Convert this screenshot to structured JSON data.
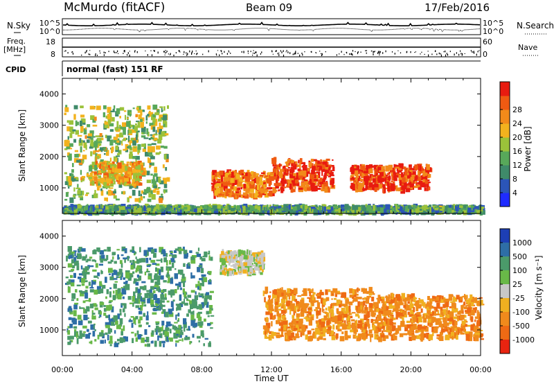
{
  "header": {
    "station": "McMurdo (fitACF)",
    "beam": "Beam 09",
    "date": "17/Feb/2016"
  },
  "noise_panel": {
    "left_label": "N.Sky",
    "right_label": "N.Search",
    "left_ticks": [
      "10^5",
      "10^0"
    ],
    "right_ticks": [
      "10^5",
      "10^0"
    ]
  },
  "freq_panel": {
    "left_label_1": "Freq.",
    "left_label_2": "[MHz]",
    "right_label": "Nave",
    "left_ticks": [
      "18",
      "8"
    ],
    "right_ticks": [
      "60",
      "0"
    ]
  },
  "cpid_panel": {
    "label": "CPID",
    "value": "normal (fast) 151 RF"
  },
  "x_axis": {
    "label": "Time UT",
    "ticks": [
      "00:00",
      "04:00",
      "08:00",
      "12:00",
      "16:00",
      "20:00",
      "00:00"
    ]
  },
  "power_panel": {
    "ylabel": "Slant Range [km]",
    "yticks": [
      "1000",
      "2000",
      "3000",
      "4000"
    ]
  },
  "velocity_panel": {
    "ylabel": "Slant Range [km]",
    "yticks": [
      "1000",
      "2000",
      "3000",
      "4000"
    ]
  },
  "power_colorbar": {
    "label": "Power [dB]",
    "ticks": [
      "4",
      "8",
      "12",
      "16",
      "20",
      "24",
      "28"
    ],
    "colors": [
      "#1f2bff",
      "#2b55b8",
      "#3f8a6a",
      "#58a85a",
      "#9bc23a",
      "#f2b21e",
      "#f28a1a",
      "#ef5a12",
      "#e81b10"
    ]
  },
  "velocity_colorbar": {
    "label": "Velocity [m s⁻¹]",
    "ticks": [
      "1000",
      "500",
      "100",
      "25",
      "-25",
      "-100",
      "-500",
      "-1000"
    ],
    "colors": [
      "#1d3fb5",
      "#2e6ea6",
      "#4b9a6a",
      "#69b848",
      "#c8c8c8",
      "#f0b020",
      "#f08a1c",
      "#ef6a14",
      "#e82410"
    ]
  },
  "chart_data": [
    {
      "type": "heatmap",
      "title": "Power",
      "xlabel": "Time UT",
      "ylabel": "Slant Range [km]",
      "xlim": [
        "00:00",
        "24:00"
      ],
      "ylim": [
        180,
        4500
      ],
      "colorbar_range": [
        0,
        30
      ],
      "colorbar_units": "dB",
      "echo_regions": [
        {
          "t_start": 0.1,
          "t_end": 6.0,
          "range_low": 600,
          "range_high": 3600,
          "power_db": 14
        },
        {
          "t_start": 1.5,
          "t_end": 4.5,
          "range_low": 1100,
          "range_high": 1800,
          "power_db": 20
        },
        {
          "t_start": 8.5,
          "t_end": 12.0,
          "range_low": 700,
          "range_high": 1500,
          "power_db": 24
        },
        {
          "t_start": 12.0,
          "t_end": 15.5,
          "range_low": 900,
          "range_high": 1900,
          "power_db": 28
        },
        {
          "t_start": 16.5,
          "t_end": 21.0,
          "range_low": 900,
          "range_high": 1700,
          "power_db": 28
        },
        {
          "t_start": 0.0,
          "t_end": 24.0,
          "range_low": 200,
          "range_high": 400,
          "power_db": 10
        }
      ]
    },
    {
      "type": "heatmap",
      "title": "Velocity",
      "xlabel": "Time UT",
      "ylabel": "Slant Range [km]",
      "xlim": [
        "00:00",
        "24:00"
      ],
      "ylim": [
        180,
        4500
      ],
      "colorbar_ticks": [
        1000,
        500,
        100,
        25,
        -25,
        -100,
        -500,
        -1000
      ],
      "colorbar_units": "m s^-1",
      "echo_regions": [
        {
          "t_start": 0.1,
          "t_end": 8.5,
          "range_low": 500,
          "range_high": 3600,
          "velocity": 300
        },
        {
          "t_start": 9.0,
          "t_end": 11.5,
          "range_low": 2800,
          "range_high": 3500,
          "velocity": 0
        },
        {
          "t_start": 11.5,
          "t_end": 18.0,
          "range_low": 700,
          "range_high": 2300,
          "velocity": -300
        },
        {
          "t_start": 18.0,
          "t_end": 24.0,
          "range_low": 700,
          "range_high": 2100,
          "velocity": -200
        }
      ]
    }
  ]
}
